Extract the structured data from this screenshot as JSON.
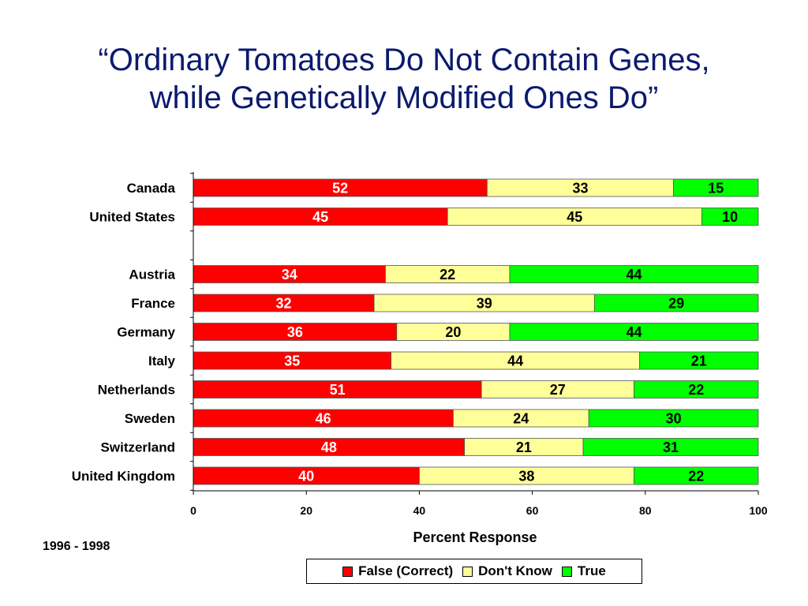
{
  "title_lines": [
    "“Ordinary Tomatoes Do Not Contain Genes,",
    "while Genetically Modified Ones Do”"
  ],
  "period": "1996 - 1998",
  "colors": {
    "false": "#ff0000",
    "dont_know": "#ffff99",
    "true": "#00ff00"
  },
  "chart_data": {
    "type": "bar",
    "orientation": "horizontal",
    "stacked": true,
    "categories": [
      "Canada",
      "United States",
      "",
      "Austria",
      "France",
      "Germany",
      "Italy",
      "Netherlands",
      "Sweden",
      "Switzerland",
      "United Kingdom"
    ],
    "series": [
      {
        "name": "False (Correct)",
        "values": [
          52,
          45,
          null,
          34,
          32,
          36,
          35,
          51,
          46,
          48,
          40
        ]
      },
      {
        "name": "Don't Know",
        "values": [
          33,
          45,
          null,
          22,
          39,
          20,
          44,
          27,
          24,
          21,
          38
        ]
      },
      {
        "name": "True",
        "values": [
          15,
          10,
          null,
          44,
          29,
          44,
          21,
          22,
          30,
          31,
          22
        ]
      }
    ],
    "xlabel": "Percent Response",
    "xlim": [
      0,
      100
    ],
    "xticks": [
      "0",
      "20",
      "40",
      "60",
      "80",
      "100"
    ],
    "grid": false,
    "legend_position": "bottom"
  }
}
